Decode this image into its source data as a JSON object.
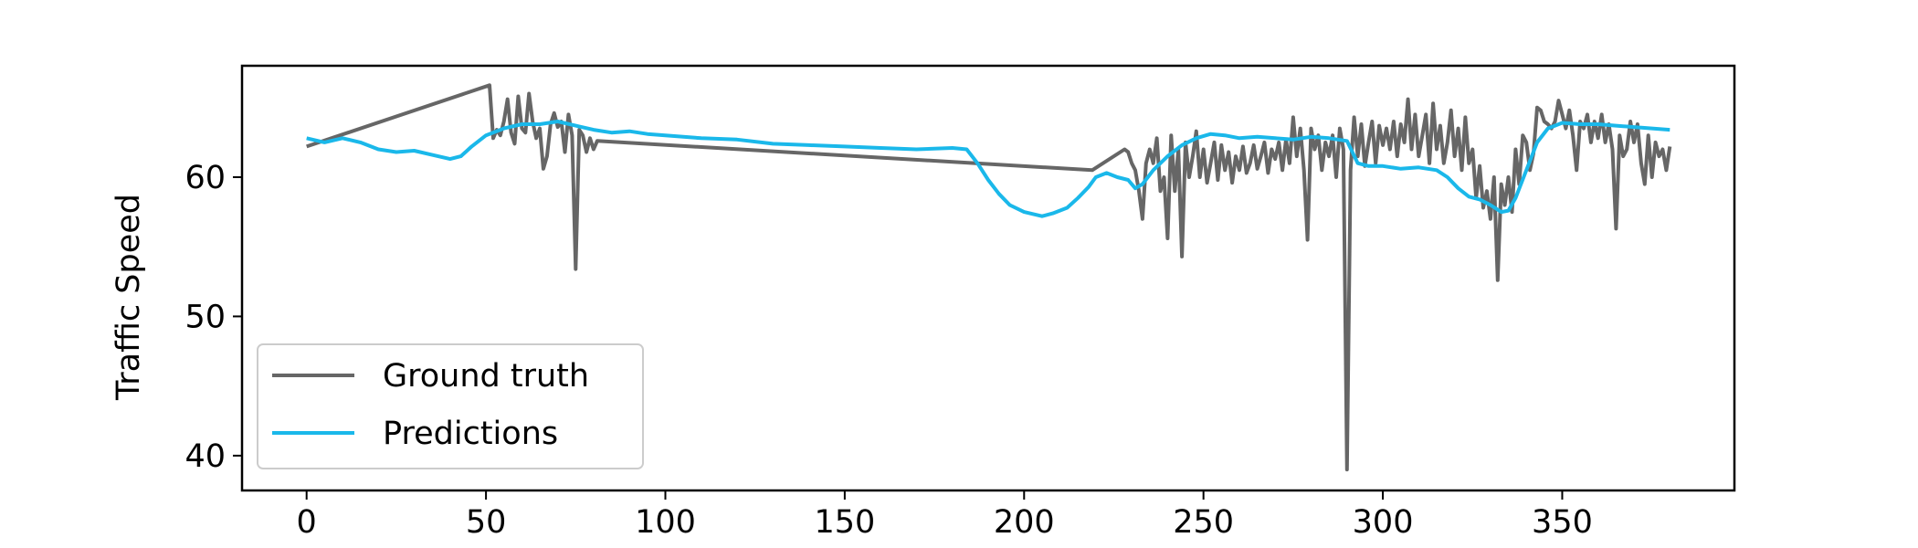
{
  "chart_data": {
    "type": "line",
    "title": "",
    "xlabel": "",
    "ylabel": "Traffic Speed",
    "xlim": [
      -18,
      398
    ],
    "ylim": [
      37.5,
      68
    ],
    "xticks": [
      0,
      50,
      100,
      150,
      200,
      250,
      300,
      350
    ],
    "yticks": [
      40,
      50,
      60
    ],
    "grid": false,
    "legend_position": "lower-left",
    "series": [
      {
        "name": "Ground truth",
        "color": "#666666",
        "points": [
          [
            0,
            62.2
          ],
          [
            51,
            66.6
          ],
          [
            52,
            62.8
          ],
          [
            53,
            63.4
          ],
          [
            54,
            63.0
          ],
          [
            55,
            64.0
          ],
          [
            56,
            65.6
          ],
          [
            57,
            63.2
          ],
          [
            58,
            62.4
          ],
          [
            59,
            65.8
          ],
          [
            60,
            63.5
          ],
          [
            61,
            63.2
          ],
          [
            62,
            66.0
          ],
          [
            63,
            64.0
          ],
          [
            64,
            62.8
          ],
          [
            65,
            63.5
          ],
          [
            66,
            60.6
          ],
          [
            67,
            61.5
          ],
          [
            68,
            63.8
          ],
          [
            69,
            64.6
          ],
          [
            70,
            63.6
          ],
          [
            71,
            64.0
          ],
          [
            72,
            61.8
          ],
          [
            73,
            64.5
          ],
          [
            74,
            63.0
          ],
          [
            75,
            53.4
          ],
          [
            76,
            63.4
          ],
          [
            77,
            63.0
          ],
          [
            78,
            61.8
          ],
          [
            79,
            62.8
          ],
          [
            80,
            62.0
          ],
          [
            81,
            62.6
          ],
          [
            219,
            60.5
          ],
          [
            228,
            62.0
          ],
          [
            229,
            61.8
          ],
          [
            230,
            61.0
          ],
          [
            231,
            60.5
          ],
          [
            232,
            59.0
          ],
          [
            233,
            57.0
          ],
          [
            234,
            61.0
          ],
          [
            235,
            62.0
          ],
          [
            236,
            61.0
          ],
          [
            237,
            62.8
          ],
          [
            238,
            59.0
          ],
          [
            239,
            60.0
          ],
          [
            240,
            55.6
          ],
          [
            241,
            63.0
          ],
          [
            242,
            59.0
          ],
          [
            243,
            62.0
          ],
          [
            244,
            54.3
          ],
          [
            245,
            62.5
          ],
          [
            246,
            60.0
          ],
          [
            247,
            61.5
          ],
          [
            248,
            63.3
          ],
          [
            249,
            60.0
          ],
          [
            250,
            62.0
          ],
          [
            251,
            59.6
          ],
          [
            252,
            61.0
          ],
          [
            253,
            62.5
          ],
          [
            254,
            59.8
          ],
          [
            255,
            62.3
          ],
          [
            256,
            60.5
          ],
          [
            257,
            61.8
          ],
          [
            258,
            59.6
          ],
          [
            259,
            61.5
          ],
          [
            260,
            60.5
          ],
          [
            261,
            62.2
          ],
          [
            262,
            60.3
          ],
          [
            263,
            61.0
          ],
          [
            264,
            62.3
          ],
          [
            265,
            60.6
          ],
          [
            266,
            61.5
          ],
          [
            267,
            62.5
          ],
          [
            268,
            60.3
          ],
          [
            269,
            62.0
          ],
          [
            270,
            61.3
          ],
          [
            271,
            62.5
          ],
          [
            272,
            60.5
          ],
          [
            273,
            62.7
          ],
          [
            274,
            61.0
          ],
          [
            275,
            64.3
          ],
          [
            276,
            61.5
          ],
          [
            277,
            63.5
          ],
          [
            278,
            60.5
          ],
          [
            279,
            55.5
          ],
          [
            280,
            63.5
          ],
          [
            281,
            62.0
          ],
          [
            282,
            63.0
          ],
          [
            283,
            60.5
          ],
          [
            284,
            62.5
          ],
          [
            285,
            61.5
          ],
          [
            286,
            63.0
          ],
          [
            287,
            60.0
          ],
          [
            288,
            63.5
          ],
          [
            289,
            62.0
          ],
          [
            290,
            39.0
          ],
          [
            291,
            60.5
          ],
          [
            292,
            64.3
          ],
          [
            293,
            61.5
          ],
          [
            294,
            63.8
          ],
          [
            295,
            60.8
          ],
          [
            296,
            62.5
          ],
          [
            297,
            64.0
          ],
          [
            298,
            61.0
          ],
          [
            299,
            63.7
          ],
          [
            300,
            62.3
          ],
          [
            301,
            63.5
          ],
          [
            302,
            62.0
          ],
          [
            303,
            64.0
          ],
          [
            304,
            61.5
          ],
          [
            305,
            63.8
          ],
          [
            306,
            62.5
          ],
          [
            307,
            65.6
          ],
          [
            308,
            62.0
          ],
          [
            309,
            64.5
          ],
          [
            310,
            61.5
          ],
          [
            311,
            63.0
          ],
          [
            312,
            64.5
          ],
          [
            313,
            61.0
          ],
          [
            314,
            65.3
          ],
          [
            315,
            62.0
          ],
          [
            316,
            63.7
          ],
          [
            317,
            61.0
          ],
          [
            318,
            62.5
          ],
          [
            319,
            64.8
          ],
          [
            320,
            61.5
          ],
          [
            321,
            63.5
          ],
          [
            322,
            60.5
          ],
          [
            323,
            64.3
          ],
          [
            324,
            61.0
          ],
          [
            325,
            62.0
          ],
          [
            326,
            58.5
          ],
          [
            327,
            60.8
          ],
          [
            328,
            57.8
          ],
          [
            329,
            59.0
          ],
          [
            330,
            57.0
          ],
          [
            331,
            60.0
          ],
          [
            332,
            52.6
          ],
          [
            333,
            59.5
          ],
          [
            334,
            58.0
          ],
          [
            335,
            60.0
          ],
          [
            336,
            57.5
          ],
          [
            337,
            62.0
          ],
          [
            338,
            59.5
          ],
          [
            339,
            63.0
          ],
          [
            340,
            62.5
          ],
          [
            341,
            60.5
          ],
          [
            342,
            61.7
          ],
          [
            343,
            65.0
          ],
          [
            344,
            64.8
          ],
          [
            345,
            64.0
          ],
          [
            346,
            63.8
          ],
          [
            347,
            63.5
          ],
          [
            348,
            64.0
          ],
          [
            349,
            65.5
          ],
          [
            350,
            64.5
          ],
          [
            351,
            63.5
          ],
          [
            352,
            64.8
          ],
          [
            353,
            63.0
          ],
          [
            354,
            60.5
          ],
          [
            355,
            64.0
          ],
          [
            356,
            63.5
          ],
          [
            357,
            64.5
          ],
          [
            358,
            62.5
          ],
          [
            359,
            64.0
          ],
          [
            360,
            62.8
          ],
          [
            361,
            64.5
          ],
          [
            362,
            62.5
          ],
          [
            363,
            63.8
          ],
          [
            364,
            62.0
          ],
          [
            365,
            56.3
          ],
          [
            366,
            63.0
          ],
          [
            367,
            61.5
          ],
          [
            368,
            62.0
          ],
          [
            369,
            64.0
          ],
          [
            370,
            62.5
          ],
          [
            371,
            63.8
          ],
          [
            372,
            61.0
          ],
          [
            373,
            59.5
          ],
          [
            374,
            63.0
          ],
          [
            375,
            60.0
          ],
          [
            376,
            62.5
          ],
          [
            377,
            61.5
          ],
          [
            378,
            62.0
          ],
          [
            379,
            60.5
          ],
          [
            380,
            62.2
          ]
        ]
      },
      {
        "name": "Predictions",
        "color": "#1ab8ea",
        "points": [
          [
            0,
            62.8
          ],
          [
            5,
            62.5
          ],
          [
            10,
            62.8
          ],
          [
            15,
            62.5
          ],
          [
            20,
            62.0
          ],
          [
            25,
            61.8
          ],
          [
            30,
            61.9
          ],
          [
            35,
            61.6
          ],
          [
            40,
            61.3
          ],
          [
            43,
            61.5
          ],
          [
            46,
            62.2
          ],
          [
            50,
            63.0
          ],
          [
            55,
            63.5
          ],
          [
            60,
            63.8
          ],
          [
            65,
            63.8
          ],
          [
            70,
            64.0
          ],
          [
            75,
            63.7
          ],
          [
            80,
            63.4
          ],
          [
            85,
            63.2
          ],
          [
            90,
            63.3
          ],
          [
            95,
            63.1
          ],
          [
            100,
            63.0
          ],
          [
            110,
            62.8
          ],
          [
            120,
            62.7
          ],
          [
            130,
            62.4
          ],
          [
            140,
            62.3
          ],
          [
            150,
            62.2
          ],
          [
            160,
            62.1
          ],
          [
            170,
            62.0
          ],
          [
            180,
            62.1
          ],
          [
            184,
            62.0
          ],
          [
            187,
            61.0
          ],
          [
            190,
            59.8
          ],
          [
            193,
            58.8
          ],
          [
            196,
            58.0
          ],
          [
            200,
            57.5
          ],
          [
            205,
            57.2
          ],
          [
            208,
            57.4
          ],
          [
            212,
            57.8
          ],
          [
            215,
            58.5
          ],
          [
            218,
            59.3
          ],
          [
            220,
            60.0
          ],
          [
            223,
            60.3
          ],
          [
            226,
            60.0
          ],
          [
            229,
            59.8
          ],
          [
            231,
            59.2
          ],
          [
            233,
            59.5
          ],
          [
            236,
            60.5
          ],
          [
            240,
            61.5
          ],
          [
            244,
            62.3
          ],
          [
            248,
            62.8
          ],
          [
            252,
            63.1
          ],
          [
            256,
            63.0
          ],
          [
            260,
            62.8
          ],
          [
            265,
            62.9
          ],
          [
            270,
            62.8
          ],
          [
            275,
            62.7
          ],
          [
            280,
            62.9
          ],
          [
            285,
            62.8
          ],
          [
            290,
            62.6
          ],
          [
            293,
            61.0
          ],
          [
            296,
            60.8
          ],
          [
            300,
            60.8
          ],
          [
            305,
            60.6
          ],
          [
            310,
            60.7
          ],
          [
            315,
            60.5
          ],
          [
            318,
            60.0
          ],
          [
            321,
            59.2
          ],
          [
            324,
            58.6
          ],
          [
            327,
            58.4
          ],
          [
            330,
            58.0
          ],
          [
            333,
            57.5
          ],
          [
            335,
            57.6
          ],
          [
            337,
            58.5
          ],
          [
            340,
            60.5
          ],
          [
            343,
            62.5
          ],
          [
            346,
            63.5
          ],
          [
            350,
            63.9
          ],
          [
            355,
            63.8
          ],
          [
            360,
            63.8
          ],
          [
            365,
            63.7
          ],
          [
            370,
            63.6
          ],
          [
            375,
            63.5
          ],
          [
            380,
            63.4
          ]
        ]
      }
    ]
  }
}
